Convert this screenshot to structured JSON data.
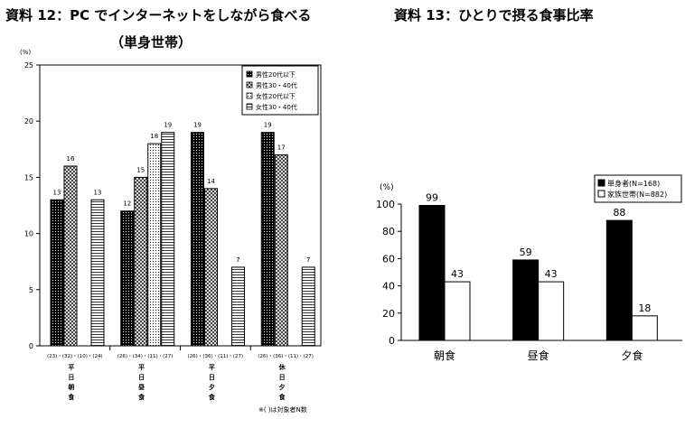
{
  "left": {
    "title_line1": "資料 12：PC でインターネットをしながら食べる",
    "title_line2": "（単身世帯）",
    "note": "※( )は対象者N数",
    "chart_data": {
      "type": "bar",
      "ylabel": "(%)",
      "ylim": [
        0,
        25
      ],
      "yticks": [
        "0",
        "5",
        "10",
        "15",
        "20",
        "25"
      ],
      "grid": false,
      "legend_position": "top-right",
      "categories": [
        {
          "name": [
            "平",
            "日",
            "朝",
            "食"
          ],
          "ns": [
            "(23)",
            "(32)",
            "(10)",
            "(24)"
          ]
        },
        {
          "name": [
            "平",
            "日",
            "昼",
            "食"
          ],
          "ns": [
            "(26)",
            "(34)",
            "(11)",
            "(27)"
          ]
        },
        {
          "name": [
            "平",
            "日",
            "夕",
            "食"
          ],
          "ns": [
            "(26)",
            "(36)",
            "(11)",
            "(27)"
          ]
        },
        {
          "name": [
            "休",
            "日",
            "夕",
            "食"
          ],
          "ns": [
            "(26)",
            "(36)",
            "(11)",
            "(27)"
          ]
        }
      ],
      "series": [
        {
          "name": "男性20代以下",
          "pattern": "dots-dark",
          "values": [
            13,
            12,
            19,
            19
          ],
          "labels": [
            "13",
            "12",
            "19",
            "19"
          ]
        },
        {
          "name": "男性30・40代",
          "pattern": "crosshatch",
          "values": [
            16,
            15,
            14,
            17
          ],
          "labels": [
            "16",
            "15",
            "14",
            "17"
          ]
        },
        {
          "name": "女性20代以下",
          "pattern": "dots-light",
          "values": [
            null,
            18,
            null,
            null
          ],
          "labels": [
            "",
            "18",
            "",
            ""
          ]
        },
        {
          "name": "女性30・40代",
          "pattern": "horizontal-lines",
          "values": [
            13,
            19,
            7,
            7
          ],
          "labels": [
            "13",
            "19",
            "7",
            "7"
          ]
        }
      ]
    }
  },
  "right": {
    "title": "資料 13：ひとりで摂る食事比率",
    "chart_data": {
      "type": "bar",
      "ylabel": "(%)",
      "ylim": [
        0,
        100
      ],
      "yticks": [
        "0",
        "20",
        "40",
        "60",
        "80",
        "100"
      ],
      "grid": false,
      "legend_position": "top-right",
      "categories": [
        "朝食",
        "昼食",
        "夕食"
      ],
      "series": [
        {
          "name": "単身者(N=168)",
          "color": "#000000",
          "values": [
            99,
            59,
            88
          ],
          "labels": [
            "99",
            "59",
            "88"
          ]
        },
        {
          "name": "家族世帯(N=882)",
          "color": "#ffffff",
          "values": [
            43,
            43,
            18
          ],
          "labels": [
            "43",
            "43",
            "18"
          ]
        }
      ]
    }
  }
}
